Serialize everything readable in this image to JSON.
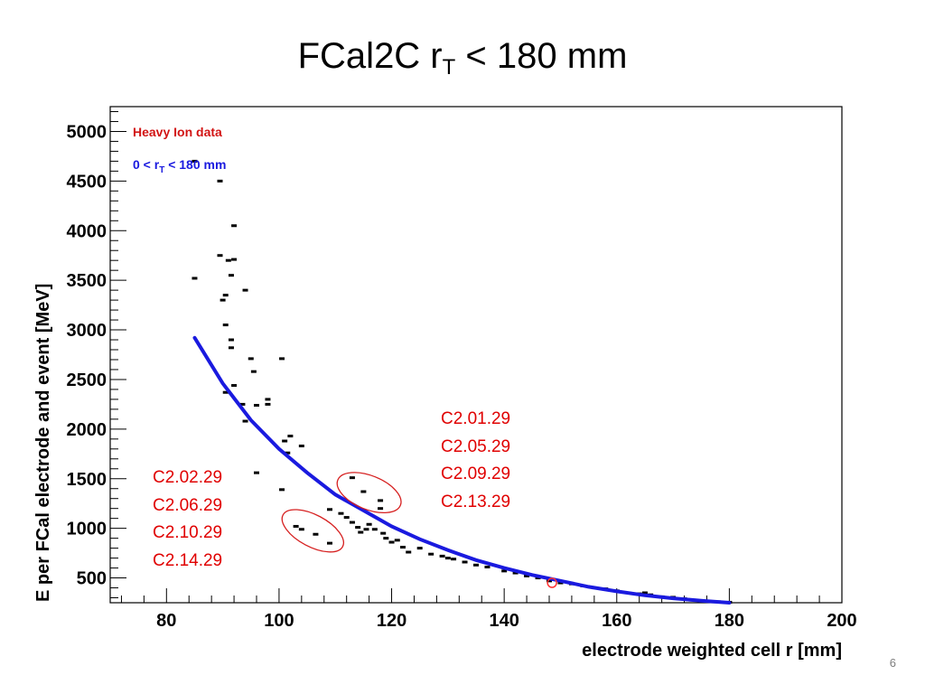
{
  "slide": {
    "title_main": "FCal2C   r",
    "title_sub": "T",
    "title_tail": " < 180 mm",
    "page_number": "6"
  },
  "annotations": {
    "right_group": [
      "C2.01.29",
      "C2.05.29",
      "C2.09.29",
      "C2.13.29"
    ],
    "left_group": [
      "C2.02.29",
      "C2.06.29",
      "C2.10.29",
      "C2.14.29"
    ]
  },
  "colors": {
    "fit_line": "#1a1adf",
    "legend_red": "#d21414",
    "annotation_red": "#e00000",
    "points": "#000000"
  },
  "chart_data": {
    "type": "scatter",
    "xlabel": "electrode weighted cell r  [mm]",
    "ylabel": "E per FCal electrode and event [MeV]",
    "xlim": [
      70,
      200
    ],
    "ylim": [
      250,
      5250
    ],
    "x_ticks": [
      80,
      100,
      120,
      140,
      160,
      180,
      200
    ],
    "y_ticks": [
      500,
      1000,
      1500,
      2000,
      2500,
      3000,
      3500,
      4000,
      4500,
      5000
    ],
    "legend": [
      "Heavy Ion data",
      "0 < r",
      "T",
      " < 180 mm"
    ],
    "grid": false,
    "series": [
      {
        "name": "Heavy Ion data",
        "points": [
          [
            85,
            4700
          ],
          [
            85,
            3520
          ],
          [
            89.5,
            4500
          ],
          [
            90,
            3300
          ],
          [
            90.5,
            3350
          ],
          [
            89.5,
            3750
          ],
          [
            91,
            3700
          ],
          [
            91.5,
            3550
          ],
          [
            92,
            3710
          ],
          [
            92,
            4050
          ],
          [
            94,
            3400
          ],
          [
            90.5,
            3050
          ],
          [
            91.5,
            2900
          ],
          [
            91.5,
            2820
          ],
          [
            90.5,
            2370
          ],
          [
            92,
            2440
          ],
          [
            93.5,
            2250
          ],
          [
            94,
            2080
          ],
          [
            95,
            2710
          ],
          [
            95.5,
            2580
          ],
          [
            96,
            2240
          ],
          [
            98,
            2300
          ],
          [
            98,
            2250
          ],
          [
            100.5,
            2710
          ],
          [
            101,
            1880
          ],
          [
            102,
            1930
          ],
          [
            101.5,
            1760
          ],
          [
            104,
            1830
          ],
          [
            96,
            1560
          ],
          [
            100.5,
            1390
          ],
          [
            103,
            1020
          ],
          [
            104,
            990
          ],
          [
            106.5,
            940
          ],
          [
            109,
            850
          ],
          [
            113,
            1510
          ],
          [
            115,
            1370
          ],
          [
            118,
            1280
          ],
          [
            118,
            1200
          ],
          [
            109,
            1190
          ],
          [
            111,
            1150
          ],
          [
            112,
            1110
          ],
          [
            113,
            1060
          ],
          [
            114,
            1010
          ],
          [
            114.5,
            960
          ],
          [
            115.5,
            990
          ],
          [
            116,
            1040
          ],
          [
            117,
            990
          ],
          [
            118.5,
            950
          ],
          [
            119,
            900
          ],
          [
            120,
            860
          ],
          [
            121,
            880
          ],
          [
            122,
            810
          ],
          [
            123,
            760
          ],
          [
            125,
            800
          ],
          [
            127,
            740
          ],
          [
            129,
            720
          ],
          [
            130,
            700
          ],
          [
            131,
            690
          ],
          [
            133,
            660
          ],
          [
            135,
            630
          ],
          [
            137,
            610
          ],
          [
            140,
            570
          ],
          [
            142,
            550
          ],
          [
            144,
            520
          ],
          [
            146,
            500
          ],
          [
            148,
            470
          ],
          [
            150,
            450
          ],
          [
            152,
            440
          ],
          [
            154,
            420
          ],
          [
            156,
            400
          ],
          [
            158,
            390
          ],
          [
            160,
            370
          ],
          [
            162,
            350
          ],
          [
            164,
            340
          ],
          [
            165,
            350
          ],
          [
            166,
            330
          ],
          [
            168,
            310
          ],
          [
            170,
            305
          ],
          [
            172,
            290
          ],
          [
            174,
            275
          ],
          [
            176,
            265
          ],
          [
            178,
            260
          ],
          [
            180,
            255
          ]
        ]
      },
      {
        "name": "0 < r T < 180 mm",
        "kind": "fit",
        "points": [
          [
            85,
            2920
          ],
          [
            90,
            2460
          ],
          [
            95,
            2090
          ],
          [
            100,
            1800
          ],
          [
            105,
            1560
          ],
          [
            110,
            1340
          ],
          [
            115,
            1180
          ],
          [
            120,
            1020
          ],
          [
            125,
            890
          ],
          [
            130,
            780
          ],
          [
            135,
            680
          ],
          [
            140,
            600
          ],
          [
            145,
            530
          ],
          [
            150,
            470
          ],
          [
            155,
            410
          ],
          [
            160,
            365
          ],
          [
            165,
            325
          ],
          [
            170,
            295
          ],
          [
            175,
            270
          ],
          [
            180,
            250
          ]
        ]
      }
    ],
    "highlight_marker": [
      148.5,
      450
    ],
    "ellipses": [
      {
        "label": "left",
        "center": [
          106,
          975
        ],
        "rx_data": 6,
        "ry_data": 160,
        "angle": 28
      },
      {
        "label": "right",
        "center": [
          116,
          1360
        ],
        "rx_data": 6,
        "ry_data": 170,
        "angle": 22
      }
    ]
  }
}
